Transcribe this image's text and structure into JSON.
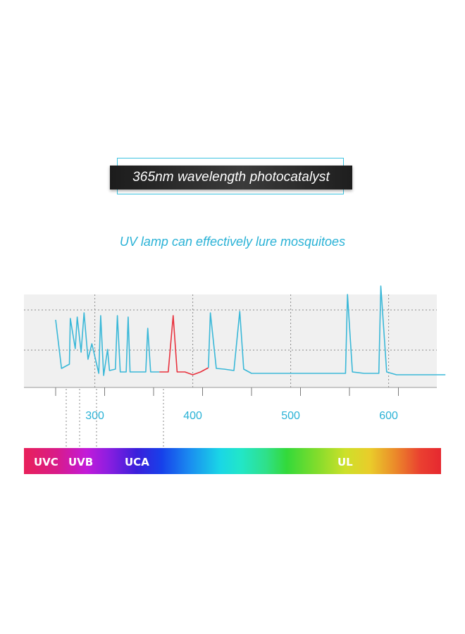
{
  "title": "365nm wavelength photocatalyst",
  "subtitle": "UV lamp can effectively lure mosquitoes",
  "colors": {
    "line": "#3ab8d8",
    "highlight": "#e8323e",
    "accent": "#2ab2d6",
    "panel": "#f0f0f0"
  },
  "chart_data": {
    "type": "line",
    "x_ticks": [
      300,
      400,
      500,
      600
    ],
    "xlim": [
      252,
      662
    ],
    "ylim": [
      0,
      1
    ],
    "grid": true,
    "series": [
      {
        "color": "#3ab8d8",
        "points": [
          [
            260,
            0.86
          ],
          [
            266,
            0.17
          ],
          [
            274,
            0.23
          ],
          [
            275,
            0.88
          ],
          [
            280,
            0.45
          ],
          [
            282,
            0.9
          ],
          [
            286,
            0.4
          ],
          [
            289,
            0.96
          ],
          [
            293,
            0.3
          ],
          [
            297,
            0.52
          ],
          [
            304,
            0.1
          ],
          [
            306,
            0.92
          ],
          [
            309,
            0.07
          ],
          [
            313,
            0.44
          ],
          [
            315,
            0.14
          ],
          [
            321,
            0.16
          ],
          [
            323,
            0.92
          ],
          [
            326,
            0.12
          ],
          [
            332,
            0.12
          ],
          [
            334,
            0.9
          ],
          [
            336,
            0.12
          ],
          [
            343,
            0.12
          ],
          [
            352,
            0.12
          ],
          [
            354,
            0.74
          ],
          [
            357,
            0.12
          ],
          [
            366,
            0.12
          ]
        ]
      },
      {
        "color": "#e8323e",
        "points": [
          [
            366,
            0.12
          ],
          [
            375,
            0.12
          ],
          [
            380,
            0.92
          ],
          [
            384,
            0.12
          ],
          [
            392,
            0.12
          ],
          [
            400,
            0.08
          ],
          [
            408,
            0.12
          ],
          [
            416,
            0.18
          ]
        ]
      },
      {
        "color": "#3ab8d8",
        "points": [
          [
            416,
            0.18
          ],
          [
            418,
            0.96
          ],
          [
            424,
            0.17
          ],
          [
            432,
            0.16
          ],
          [
            442,
            0.14
          ],
          [
            448,
            0.98
          ],
          [
            452,
            0.16
          ],
          [
            460,
            0.1
          ],
          [
            470,
            0.1
          ],
          [
            500,
            0.1
          ],
          [
            540,
            0.1
          ],
          [
            556,
            0.1
          ],
          [
            558,
            1.22
          ],
          [
            563,
            0.12
          ],
          [
            575,
            0.1
          ],
          [
            590,
            0.1
          ],
          [
            592,
            1.34
          ],
          [
            598,
            0.12
          ],
          [
            608,
            0.08
          ],
          [
            630,
            0.08
          ],
          [
            658,
            0.08
          ]
        ]
      }
    ],
    "bands": [
      {
        "label": "UVC",
        "start": 252,
        "end": 310
      },
      {
        "label": "UVB",
        "start": 310,
        "end": 345
      },
      {
        "label": "UCA",
        "start": 345,
        "end": 401
      },
      {
        "label": "UL",
        "start": 401,
        "end": 662
      }
    ]
  }
}
